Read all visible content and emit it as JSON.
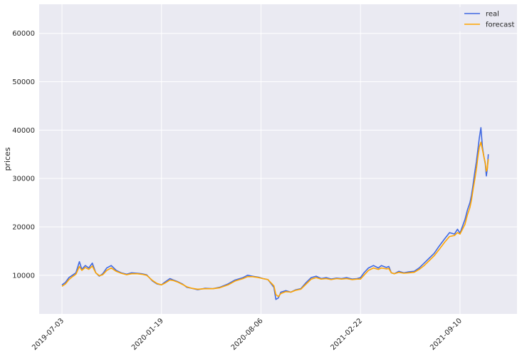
{
  "chart_data": {
    "type": "line",
    "title": "",
    "xlabel": "",
    "ylabel": "prices",
    "ylim": [
      2000,
      66000
    ],
    "y_ticks": [
      10000,
      20000,
      30000,
      40000,
      50000,
      60000
    ],
    "y_tick_labels": [
      "10000",
      "20000",
      "30000",
      "40000",
      "50000",
      "60000"
    ],
    "x_start": "2019-07-03",
    "x_end": "2021-11-06",
    "x_ticks": [
      "2019-07-03",
      "2020-01-19",
      "2020-08-06",
      "2021-02-22",
      "2021-09-10"
    ],
    "grid": true,
    "legend_position": "top-right",
    "colors": {
      "real": "#4169e1",
      "forecast": "#ffa500",
      "background": "#eaeaf2",
      "grid": "#ffffff"
    },
    "series": [
      {
        "name": "real",
        "points": [
          [
            "2019-07-03",
            8000
          ],
          [
            "2019-07-10",
            8500
          ],
          [
            "2019-07-17",
            9500
          ],
          [
            "2019-07-24",
            10000
          ],
          [
            "2019-07-31",
            10500
          ],
          [
            "2019-08-07",
            12800
          ],
          [
            "2019-08-12",
            11200
          ],
          [
            "2019-08-19",
            12000
          ],
          [
            "2019-08-26",
            11500
          ],
          [
            "2019-09-02",
            12500
          ],
          [
            "2019-09-09",
            10500
          ],
          [
            "2019-09-16",
            9800
          ],
          [
            "2019-09-23",
            10300
          ],
          [
            "2019-10-01",
            11500
          ],
          [
            "2019-10-10",
            12000
          ],
          [
            "2019-10-20",
            11000
          ],
          [
            "2019-10-30",
            10500
          ],
          [
            "2019-11-10",
            10200
          ],
          [
            "2019-11-20",
            10500
          ],
          [
            "2019-12-01",
            10400
          ],
          [
            "2019-12-10",
            10300
          ],
          [
            "2019-12-20",
            10100
          ],
          [
            "2020-01-01",
            8800
          ],
          [
            "2020-01-10",
            8200
          ],
          [
            "2020-01-19",
            8000
          ],
          [
            "2020-01-25",
            8500
          ],
          [
            "2020-02-05",
            9300
          ],
          [
            "2020-02-12",
            9000
          ],
          [
            "2020-02-20",
            8700
          ],
          [
            "2020-03-01",
            8200
          ],
          [
            "2020-03-10",
            7500
          ],
          [
            "2020-03-20",
            7300
          ],
          [
            "2020-04-01",
            7000
          ],
          [
            "2020-04-15",
            7300
          ],
          [
            "2020-05-01",
            7200
          ],
          [
            "2020-05-15",
            7500
          ],
          [
            "2020-06-01",
            8200
          ],
          [
            "2020-06-15",
            9000
          ],
          [
            "2020-07-01",
            9500
          ],
          [
            "2020-07-10",
            10000
          ],
          [
            "2020-07-20",
            9800
          ],
          [
            "2020-08-01",
            9600
          ],
          [
            "2020-08-10",
            9300
          ],
          [
            "2020-08-20",
            9100
          ],
          [
            "2020-09-01",
            7500
          ],
          [
            "2020-09-05",
            5000
          ],
          [
            "2020-09-10",
            5300
          ],
          [
            "2020-09-15",
            6500
          ],
          [
            "2020-09-25",
            6800
          ],
          [
            "2020-10-05",
            6500
          ],
          [
            "2020-10-15",
            7000
          ],
          [
            "2020-10-25",
            7200
          ],
          [
            "2020-11-05",
            8500
          ],
          [
            "2020-11-15",
            9500
          ],
          [
            "2020-11-25",
            9800
          ],
          [
            "2020-12-05",
            9300
          ],
          [
            "2020-12-15",
            9500
          ],
          [
            "2020-12-25",
            9200
          ],
          [
            "2021-01-05",
            9400
          ],
          [
            "2021-01-15",
            9300
          ],
          [
            "2021-01-25",
            9500
          ],
          [
            "2021-02-05",
            9200
          ],
          [
            "2021-02-15",
            9300
          ],
          [
            "2021-02-22",
            9500
          ],
          [
            "2021-03-01",
            10500
          ],
          [
            "2021-03-10",
            11500
          ],
          [
            "2021-03-20",
            12000
          ],
          [
            "2021-03-30",
            11500
          ],
          [
            "2021-04-05",
            12000
          ],
          [
            "2021-04-15",
            11600
          ],
          [
            "2021-04-20",
            11800
          ],
          [
            "2021-04-25",
            10500
          ],
          [
            "2021-05-01",
            10300
          ],
          [
            "2021-05-10",
            10800
          ],
          [
            "2021-05-20",
            10500
          ],
          [
            "2021-05-30",
            10700
          ],
          [
            "2021-06-10",
            10800
          ],
          [
            "2021-06-20",
            11500
          ],
          [
            "2021-06-30",
            12500
          ],
          [
            "2021-07-10",
            13500
          ],
          [
            "2021-07-20",
            14500
          ],
          [
            "2021-07-30",
            16000
          ],
          [
            "2021-08-10",
            17500
          ],
          [
            "2021-08-20",
            18800
          ],
          [
            "2021-08-30",
            18500
          ],
          [
            "2021-09-05",
            19500
          ],
          [
            "2021-09-10",
            18700
          ],
          [
            "2021-09-20",
            21500
          ],
          [
            "2021-09-25",
            23500
          ],
          [
            "2021-09-30",
            25000
          ],
          [
            "2021-10-03",
            26500
          ],
          [
            "2021-10-06",
            28500
          ],
          [
            "2021-10-10",
            31500
          ],
          [
            "2021-10-13",
            33500
          ],
          [
            "2021-10-16",
            36000
          ],
          [
            "2021-10-19",
            38500
          ],
          [
            "2021-10-22",
            40500
          ],
          [
            "2021-10-25",
            36500
          ],
          [
            "2021-10-28",
            34500
          ],
          [
            "2021-10-31",
            33000
          ],
          [
            "2021-11-02",
            30500
          ],
          [
            "2021-11-04",
            32000
          ],
          [
            "2021-11-06",
            35000
          ]
        ]
      },
      {
        "name": "forecast",
        "points": [
          [
            "2019-07-03",
            7700
          ],
          [
            "2019-07-10",
            8200
          ],
          [
            "2019-07-17",
            9100
          ],
          [
            "2019-07-24",
            9700
          ],
          [
            "2019-07-31",
            10200
          ],
          [
            "2019-08-07",
            11800
          ],
          [
            "2019-08-12",
            11000
          ],
          [
            "2019-08-19",
            11600
          ],
          [
            "2019-08-26",
            11200
          ],
          [
            "2019-09-02",
            11900
          ],
          [
            "2019-09-09",
            10500
          ],
          [
            "2019-09-16",
            9900
          ],
          [
            "2019-09-23",
            10100
          ],
          [
            "2019-10-01",
            11000
          ],
          [
            "2019-10-10",
            11500
          ],
          [
            "2019-10-20",
            10800
          ],
          [
            "2019-10-30",
            10400
          ],
          [
            "2019-11-10",
            10100
          ],
          [
            "2019-11-20",
            10300
          ],
          [
            "2019-12-01",
            10300
          ],
          [
            "2019-12-10",
            10200
          ],
          [
            "2019-12-20",
            10000
          ],
          [
            "2020-01-01",
            8900
          ],
          [
            "2020-01-10",
            8300
          ],
          [
            "2020-01-19",
            8000
          ],
          [
            "2020-01-25",
            8300
          ],
          [
            "2020-02-05",
            9000
          ],
          [
            "2020-02-12",
            8900
          ],
          [
            "2020-02-20",
            8600
          ],
          [
            "2020-03-01",
            8100
          ],
          [
            "2020-03-10",
            7600
          ],
          [
            "2020-03-20",
            7300
          ],
          [
            "2020-04-01",
            7100
          ],
          [
            "2020-04-15",
            7200
          ],
          [
            "2020-05-01",
            7200
          ],
          [
            "2020-05-15",
            7400
          ],
          [
            "2020-06-01",
            8000
          ],
          [
            "2020-06-15",
            8800
          ],
          [
            "2020-07-01",
            9300
          ],
          [
            "2020-07-10",
            9700
          ],
          [
            "2020-07-20",
            9700
          ],
          [
            "2020-08-01",
            9500
          ],
          [
            "2020-08-10",
            9300
          ],
          [
            "2020-08-20",
            9100
          ],
          [
            "2020-09-01",
            7800
          ],
          [
            "2020-09-05",
            6000
          ],
          [
            "2020-09-10",
            5600
          ],
          [
            "2020-09-15",
            6200
          ],
          [
            "2020-09-25",
            6600
          ],
          [
            "2020-10-05",
            6500
          ],
          [
            "2020-10-15",
            6900
          ],
          [
            "2020-10-25",
            7100
          ],
          [
            "2020-11-05",
            8200
          ],
          [
            "2020-11-15",
            9200
          ],
          [
            "2020-11-25",
            9500
          ],
          [
            "2020-12-05",
            9200
          ],
          [
            "2020-12-15",
            9300
          ],
          [
            "2020-12-25",
            9100
          ],
          [
            "2021-01-05",
            9300
          ],
          [
            "2021-01-15",
            9200
          ],
          [
            "2021-01-25",
            9300
          ],
          [
            "2021-02-05",
            9100
          ],
          [
            "2021-02-15",
            9200
          ],
          [
            "2021-02-22",
            9200
          ],
          [
            "2021-03-01",
            10000
          ],
          [
            "2021-03-10",
            11000
          ],
          [
            "2021-03-20",
            11500
          ],
          [
            "2021-03-30",
            11200
          ],
          [
            "2021-04-05",
            11500
          ],
          [
            "2021-04-15",
            11300
          ],
          [
            "2021-04-20",
            11400
          ],
          [
            "2021-04-25",
            10500
          ],
          [
            "2021-05-01",
            10300
          ],
          [
            "2021-05-10",
            10600
          ],
          [
            "2021-05-20",
            10400
          ],
          [
            "2021-05-30",
            10500
          ],
          [
            "2021-06-10",
            10600
          ],
          [
            "2021-06-20",
            11200
          ],
          [
            "2021-06-30",
            12000
          ],
          [
            "2021-07-10",
            13000
          ],
          [
            "2021-07-20",
            14000
          ],
          [
            "2021-07-30",
            15300
          ],
          [
            "2021-08-10",
            16800
          ],
          [
            "2021-08-20",
            18000
          ],
          [
            "2021-08-30",
            18200
          ],
          [
            "2021-09-05",
            18800
          ],
          [
            "2021-09-10",
            18500
          ],
          [
            "2021-09-20",
            20500
          ],
          [
            "2021-09-25",
            22500
          ],
          [
            "2021-09-30",
            24000
          ],
          [
            "2021-10-03",
            25500
          ],
          [
            "2021-10-06",
            27500
          ],
          [
            "2021-10-10",
            30000
          ],
          [
            "2021-10-13",
            32000
          ],
          [
            "2021-10-16",
            34500
          ],
          [
            "2021-10-19",
            36500
          ],
          [
            "2021-10-22",
            37500
          ],
          [
            "2021-10-25",
            36000
          ],
          [
            "2021-10-28",
            34500
          ],
          [
            "2021-10-31",
            33200
          ],
          [
            "2021-11-02",
            31500
          ],
          [
            "2021-11-04",
            32000
          ],
          [
            "2021-11-06",
            34000
          ]
        ]
      }
    ]
  }
}
